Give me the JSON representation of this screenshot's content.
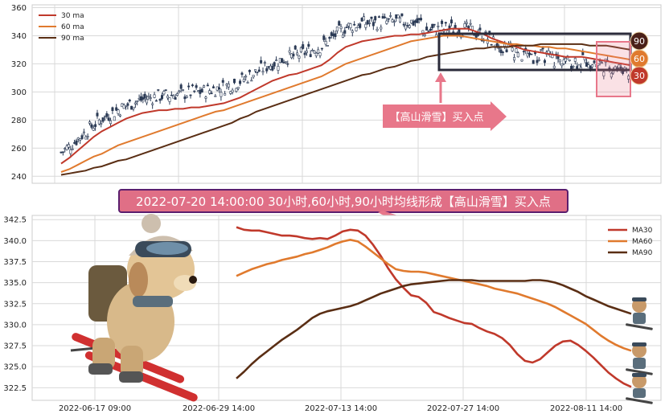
{
  "colors": {
    "ma30": "#c0392b",
    "ma60": "#e07a2e",
    "ma90": "#5a2e14",
    "candle": "#2b3a55",
    "grid": "#d9d9d9",
    "highlight_box": "#2b2b3a",
    "pink": "#e8778a",
    "banner_bg": "#e06f86",
    "banner_border": "#5a1e6e"
  },
  "top_chart": {
    "legend": [
      "30 ma",
      "60 ma",
      "90 ma"
    ],
    "y_ticks": [
      "360",
      "340",
      "320",
      "300",
      "280",
      "260",
      "240"
    ],
    "badges": [
      "90",
      "60",
      "30"
    ],
    "signal_label": "【高山滑雪】买入点"
  },
  "banner": {
    "text": "2022-07-20 14:00:00 30小时,60小时,90小时均线形成【高山滑雪】买入点"
  },
  "bottom_chart": {
    "legend": [
      "MA30",
      "MA60",
      "MA90"
    ],
    "y_ticks": [
      "342.5",
      "340.0",
      "337.5",
      "335.0",
      "332.5",
      "330.0",
      "327.5",
      "325.0",
      "322.5"
    ],
    "x_ticks": [
      "2022-06-17 09:00",
      "2022-06-29 14:00",
      "2022-07-13 14:00",
      "2022-07-27 14:00",
      "2022-08-11 14:00"
    ]
  },
  "chart_data": [
    {
      "type": "line",
      "panel": "top",
      "ylim": [
        235,
        362
      ],
      "series": [
        {
          "name": "30 ma",
          "values": [
            249,
            253,
            258,
            263,
            268,
            272,
            275,
            278,
            281,
            283,
            285,
            286,
            287,
            287,
            288,
            288,
            289,
            289,
            290,
            291,
            292,
            294,
            296,
            299,
            302,
            305,
            308,
            310,
            312,
            313,
            315,
            317,
            319,
            323,
            328,
            332,
            334,
            336,
            337,
            338,
            339,
            340,
            340,
            341,
            341,
            342,
            343,
            344,
            345,
            345,
            345,
            343,
            341,
            338,
            336,
            334,
            332,
            330,
            329,
            328,
            327,
            326,
            325,
            325,
            325,
            324,
            323,
            322,
            321,
            320,
            319
          ]
        },
        {
          "name": "60 ma",
          "values": [
            243,
            245,
            248,
            251,
            254,
            256,
            259,
            262,
            264,
            266,
            268,
            270,
            272,
            274,
            276,
            278,
            280,
            282,
            284,
            286,
            287,
            289,
            291,
            293,
            295,
            297,
            299,
            301,
            303,
            305,
            307,
            309,
            311,
            314,
            317,
            320,
            322,
            324,
            326,
            328,
            330,
            332,
            334,
            336,
            337,
            338,
            339,
            340,
            340,
            340,
            339,
            338,
            337,
            336,
            335,
            334,
            334,
            333,
            333,
            332,
            332,
            331,
            331,
            330,
            329,
            328,
            327,
            326,
            325,
            324,
            323
          ]
        },
        {
          "name": "90 ma",
          "values": [
            241,
            242,
            243,
            244,
            246,
            247,
            249,
            251,
            252,
            254,
            256,
            258,
            260,
            262,
            264,
            266,
            268,
            270,
            272,
            274,
            276,
            278,
            281,
            283,
            286,
            288,
            290,
            292,
            294,
            296,
            298,
            300,
            302,
            304,
            306,
            308,
            310,
            312,
            313,
            315,
            317,
            318,
            320,
            322,
            323,
            325,
            326,
            327,
            328,
            329,
            330,
            331,
            331,
            332,
            332,
            332,
            333,
            333,
            333,
            334,
            334,
            334,
            334,
            334,
            334,
            333,
            333,
            333,
            332,
            331,
            330
          ]
        }
      ]
    },
    {
      "type": "line",
      "panel": "bottom",
      "ylim": [
        321,
        343
      ],
      "series": [
        {
          "name": "MA30",
          "values": [
            341.6,
            341.3,
            341.2,
            341.2,
            341.0,
            340.8,
            340.6,
            340.6,
            340.5,
            340.3,
            340.2,
            340.3,
            340.2,
            340.6,
            341.1,
            341.3,
            341.2,
            340.6,
            339.5,
            338.2,
            336.7,
            335.4,
            334.4,
            333.5,
            333.3,
            332.6,
            331.5,
            331.2,
            330.8,
            330.5,
            330.2,
            330.1,
            329.6,
            329.2,
            328.9,
            328.4,
            327.6,
            326.5,
            325.7,
            325.5,
            325.9,
            326.7,
            327.5,
            328.0,
            328.1,
            327.6,
            326.9,
            326.1,
            325.2,
            324.3,
            323.6,
            323.0,
            322.6
          ]
        },
        {
          "name": "MA60",
          "values": [
            335.8,
            336.2,
            336.6,
            336.9,
            337.2,
            337.4,
            337.7,
            337.9,
            338.1,
            338.4,
            338.6,
            338.9,
            339.2,
            339.6,
            339.9,
            340.1,
            339.9,
            339.3,
            338.6,
            337.9,
            337.2,
            336.6,
            336.4,
            336.3,
            336.3,
            336.2,
            336.0,
            335.8,
            335.6,
            335.4,
            335.2,
            335.0,
            334.8,
            334.6,
            334.3,
            334.1,
            333.9,
            333.7,
            333.4,
            333.1,
            332.8,
            332.5,
            332.1,
            331.6,
            331.1,
            330.6,
            330.1,
            329.4,
            328.7,
            328.1,
            327.6,
            327.2,
            326.9
          ]
        },
        {
          "name": "MA90",
          "values": [
            323.6,
            324.4,
            325.3,
            326.1,
            326.8,
            327.5,
            328.2,
            328.8,
            329.4,
            330.1,
            330.8,
            331.3,
            331.6,
            331.8,
            332.0,
            332.2,
            332.5,
            332.9,
            333.3,
            333.7,
            334.0,
            334.3,
            334.6,
            334.8,
            334.9,
            335.0,
            335.1,
            335.2,
            335.3,
            335.3,
            335.3,
            335.3,
            335.2,
            335.2,
            335.2,
            335.2,
            335.2,
            335.2,
            335.2,
            335.3,
            335.3,
            335.2,
            335.0,
            334.7,
            334.3,
            333.9,
            333.4,
            333.0,
            332.6,
            332.2,
            331.9,
            331.6,
            331.3
          ]
        }
      ]
    }
  ]
}
